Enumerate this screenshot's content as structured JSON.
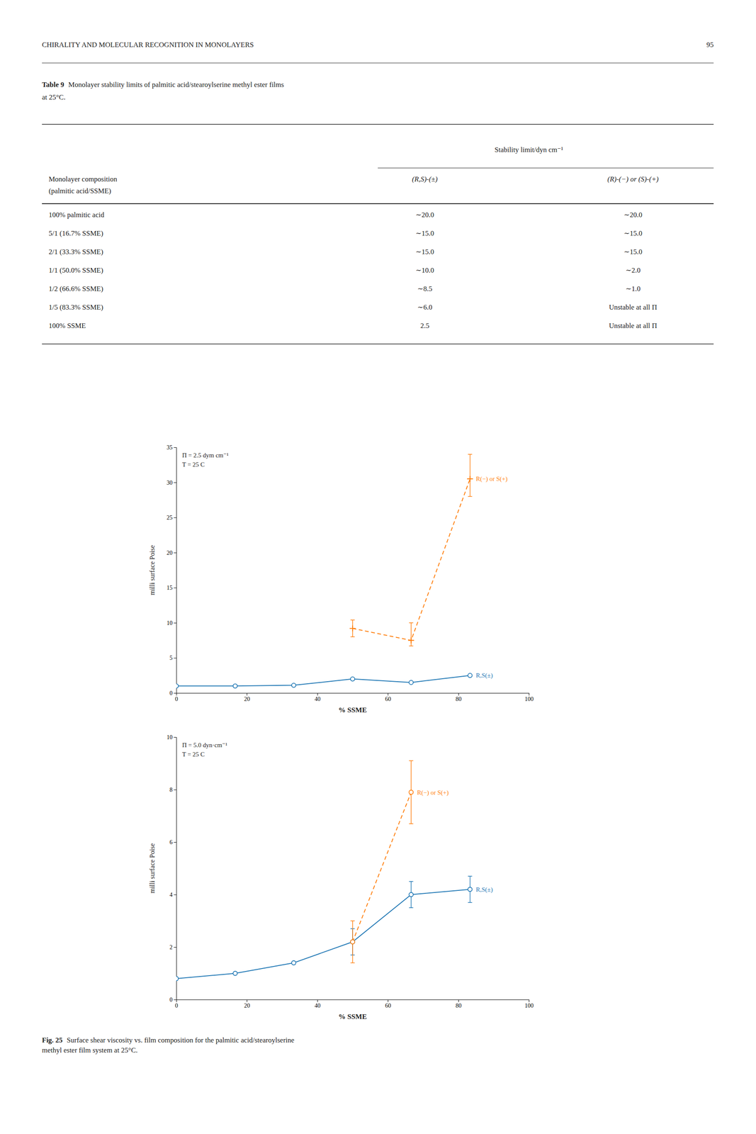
{
  "page_header": "CHIRALITY AND MOLECULAR RECOGNITION IN MONOLAYERS",
  "page_number": "95",
  "table": {
    "title_bold": "Table 9",
    "title_rest": "Monolayer stability limits of palmitic acid/stearoylserine methyl ester films",
    "subtitle": "at 25°C.",
    "column_group": "Stability limit/dyn cm⁻¹",
    "columns": [
      "Monolayer composition",
      "(R,S)-(±)",
      "(R)-(−) or (S)-(+)"
    ],
    "column_note": "(palmitic acid/SSME)",
    "rows": [
      [
        "100% palmitic acid",
        "∼20.0",
        "∼20.0"
      ],
      [
        "5/1 (16.7% SSME)",
        "∼15.0",
        "∼15.0"
      ],
      [
        "2/1 (33.3% SSME)",
        "∼15.0",
        "∼15.0"
      ],
      [
        "1/1 (50.0% SSME)",
        "∼10.0",
        "∼2.0"
      ],
      [
        "1/2 (66.6% SSME)",
        "∼8.5",
        "∼1.0"
      ],
      [
        "1/5 (83.3% SSME)",
        "∼6.0",
        "Unstable at all Π"
      ],
      [
        "100% SSME",
        "2.5",
        "Unstable at all Π"
      ]
    ]
  },
  "chart_data": [
    {
      "type": "line",
      "annotations": [
        "Π = 2.5 dym cm⁻¹",
        "T = 25 C"
      ],
      "x_label": "% SSME",
      "y_label": "milli surface Poise",
      "xlim": [
        0,
        100
      ],
      "xticks": [
        0,
        20,
        40,
        60,
        80,
        100
      ],
      "ylim": [
        0,
        35
      ],
      "yticks": [
        0,
        5,
        10,
        15,
        20,
        25,
        30,
        35
      ],
      "grid": false,
      "series": [
        {
          "name": "R,S(±)",
          "line_style": "solid",
          "marker": "circle",
          "x": [
            0,
            16.7,
            33.3,
            50.0,
            66.6,
            83.3
          ],
          "values": [
            1.0,
            1.0,
            1.1,
            2.0,
            1.5,
            2.5
          ]
        },
        {
          "name": "R(−) or S(+)",
          "line_style": "dashed",
          "marker": "plus",
          "x": [
            50.0,
            66.6,
            83.3
          ],
          "values": [
            9.2,
            7.5,
            30.5
          ],
          "error_low": [
            1.2,
            0.8,
            2.5
          ],
          "error_high": [
            1.2,
            2.5,
            3.5
          ]
        }
      ]
    },
    {
      "type": "line",
      "annotations": [
        "Π = 5.0 dyn·cm⁻¹",
        "T = 25 C"
      ],
      "x_label": "% SSME",
      "y_label": "milli surface Poise",
      "xlim": [
        0,
        100
      ],
      "xticks": [
        0,
        20,
        40,
        60,
        80,
        100
      ],
      "ylim": [
        0,
        10
      ],
      "yticks": [
        0,
        2,
        4,
        6,
        8,
        10
      ],
      "grid": false,
      "series": [
        {
          "name": "R,S(±)",
          "line_style": "solid",
          "marker": "circle",
          "x": [
            0,
            16.7,
            33.3,
            50.0,
            66.6,
            83.3
          ],
          "values": [
            0.8,
            1.0,
            1.4,
            2.2,
            4.0,
            4.2
          ],
          "error_low": [
            null,
            null,
            null,
            0.5,
            0.5,
            0.5
          ],
          "error_high": [
            null,
            null,
            null,
            0.5,
            0.5,
            0.5
          ]
        },
        {
          "name": "R(−) or S(+)",
          "line_style": "dashed",
          "marker": "circle",
          "x": [
            50.0,
            66.6
          ],
          "values": [
            2.2,
            7.9
          ],
          "error_low": [
            0.8,
            1.2
          ],
          "error_high": [
            0.8,
            1.2
          ]
        }
      ]
    }
  ],
  "caption_bold": "Fig. 25",
  "caption_lines": [
    "Surface shear viscosity vs. film composition for the palmitic acid/stearoylserine",
    "methyl ester film system at 25°C."
  ]
}
